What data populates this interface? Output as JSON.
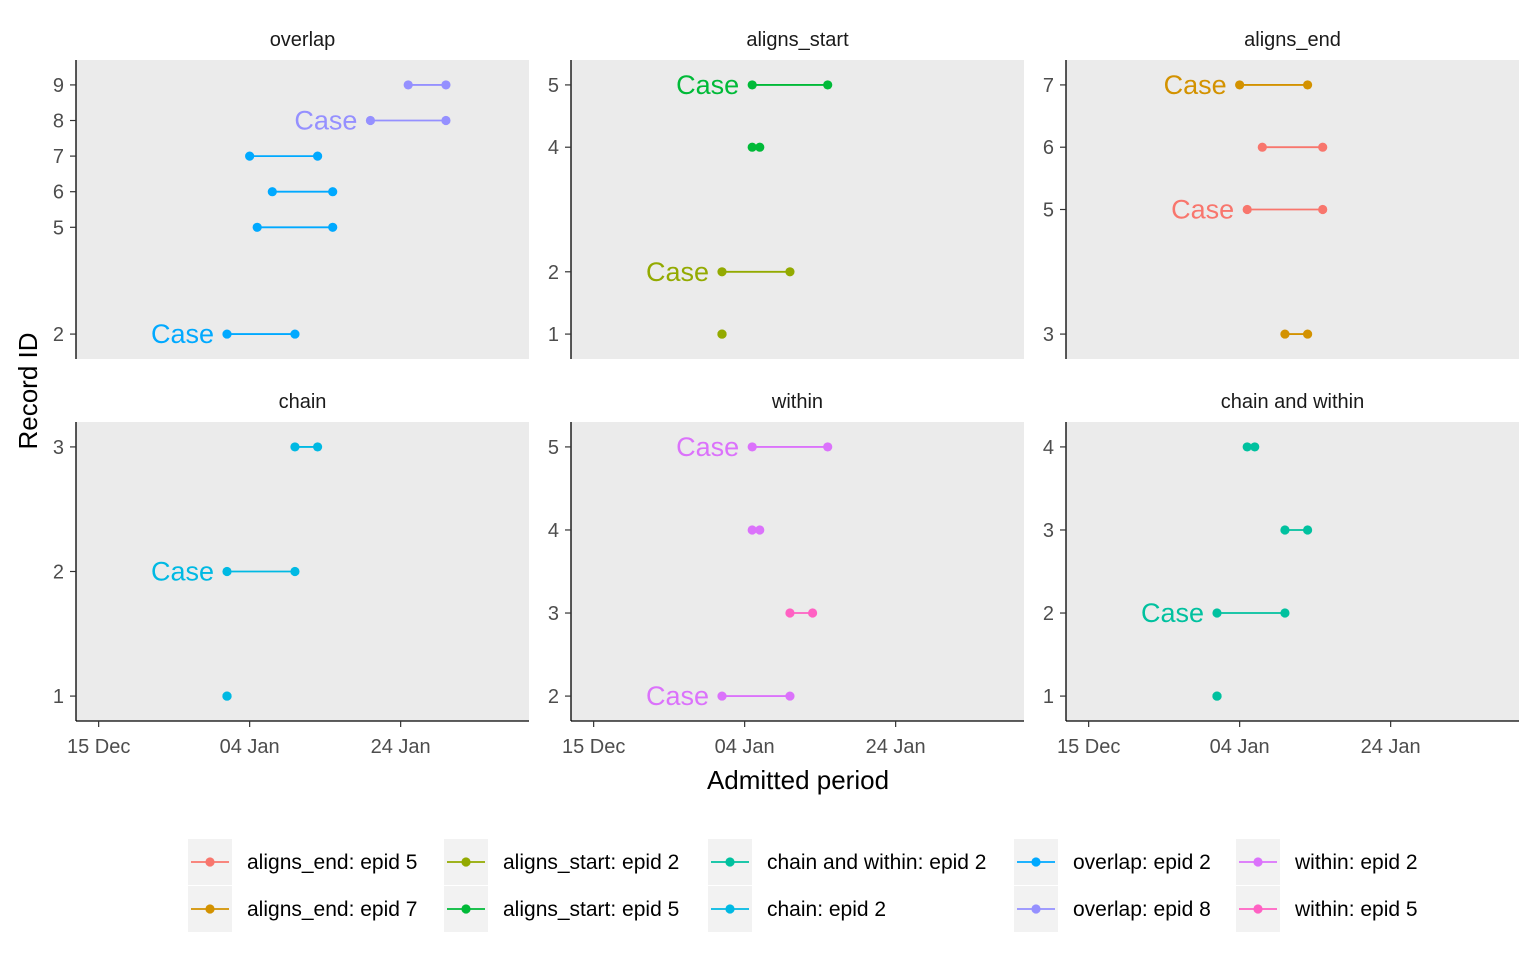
{
  "chart_data": {
    "type": "line",
    "title": "",
    "xlabel": "Admitted period",
    "ylabel": "Record ID",
    "x_ticks": [
      "15 Dec",
      "04 Jan",
      "24 Jan"
    ],
    "x_tick_dates": [
      "2019-12-15",
      "2020-01-04",
      "2020-01-24"
    ],
    "xlim": [
      "2019-12-12",
      "2020-02-10"
    ],
    "grid": false,
    "legend_position": "bottom",
    "case_label": "Case",
    "colors": {
      "aligns_end: epid 5": "#F8766D",
      "aligns_end: epid 7": "#D39200",
      "aligns_start: epid 2": "#93AA00",
      "aligns_start: epid 5": "#00BA38",
      "chain and within: epid 2": "#00C19F",
      "chain: epid 2": "#00B9E3",
      "overlap: epid 2": "#00A9FF",
      "overlap: epid 8": "#9590FF",
      "within: epid 2": "#DB72FB",
      "within: epid 5": "#FF61C3"
    },
    "legend": [
      "aligns_end: epid 5",
      "aligns_end: epid 7",
      "aligns_start: epid 2",
      "aligns_start: epid 5",
      "chain and within: epid 2",
      "chain: epid 2",
      "overlap: epid 2",
      "overlap: epid 8",
      "within: epid 2",
      "within: epid 5"
    ],
    "panels": [
      {
        "title": "overlap",
        "y_ticks": [
          "2",
          "5",
          "6",
          "7",
          "8",
          "9"
        ],
        "records": [
          {
            "id": "2",
            "start": "2020-01-01",
            "end": "2020-01-10",
            "series": "overlap: epid 2",
            "case": true
          },
          {
            "id": "5",
            "start": "2020-01-05",
            "end": "2020-01-15",
            "series": "overlap: epid 2",
            "case": false
          },
          {
            "id": "6",
            "start": "2020-01-07",
            "end": "2020-01-15",
            "series": "overlap: epid 2",
            "case": false
          },
          {
            "id": "7",
            "start": "2020-01-04",
            "end": "2020-01-13",
            "series": "overlap: epid 2",
            "case": false
          },
          {
            "id": "8",
            "start": "2020-01-20",
            "end": "2020-01-30",
            "series": "overlap: epid 8",
            "case": true
          },
          {
            "id": "9",
            "start": "2020-01-25",
            "end": "2020-01-30",
            "series": "overlap: epid 8",
            "case": false
          }
        ]
      },
      {
        "title": "aligns_start",
        "y_ticks": [
          "1",
          "2",
          "4",
          "5"
        ],
        "records": [
          {
            "id": "1",
            "start": "2020-01-01",
            "end": "2020-01-01",
            "series": "aligns_start: epid 2",
            "case": false
          },
          {
            "id": "2",
            "start": "2020-01-01",
            "end": "2020-01-10",
            "series": "aligns_start: epid 2",
            "case": true
          },
          {
            "id": "4",
            "start": "2020-01-05",
            "end": "2020-01-06",
            "series": "aligns_start: epid 5",
            "case": false
          },
          {
            "id": "5",
            "start": "2020-01-05",
            "end": "2020-01-15",
            "series": "aligns_start: epid 5",
            "case": true
          }
        ]
      },
      {
        "title": "aligns_end",
        "y_ticks": [
          "3",
          "5",
          "6",
          "7"
        ],
        "records": [
          {
            "id": "3",
            "start": "2020-01-10",
            "end": "2020-01-13",
            "series": "aligns_end: epid 7",
            "case": false
          },
          {
            "id": "5",
            "start": "2020-01-05",
            "end": "2020-01-15",
            "series": "aligns_end: epid 5",
            "case": true
          },
          {
            "id": "6",
            "start": "2020-01-07",
            "end": "2020-01-15",
            "series": "aligns_end: epid 5",
            "case": false
          },
          {
            "id": "7",
            "start": "2020-01-04",
            "end": "2020-01-13",
            "series": "aligns_end: epid 7",
            "case": true
          }
        ]
      },
      {
        "title": "chain",
        "y_ticks": [
          "1",
          "2",
          "3"
        ],
        "records": [
          {
            "id": "1",
            "start": "2020-01-01",
            "end": "2020-01-01",
            "series": "chain: epid 2",
            "case": false
          },
          {
            "id": "2",
            "start": "2020-01-01",
            "end": "2020-01-10",
            "series": "chain: epid 2",
            "case": true
          },
          {
            "id": "3",
            "start": "2020-01-10",
            "end": "2020-01-13",
            "series": "chain: epid 2",
            "case": false
          }
        ]
      },
      {
        "title": "within",
        "y_ticks": [
          "2",
          "3",
          "4",
          "5"
        ],
        "records": [
          {
            "id": "2",
            "start": "2020-01-01",
            "end": "2020-01-10",
            "series": "within: epid 2",
            "case": true
          },
          {
            "id": "3",
            "start": "2020-01-10",
            "end": "2020-01-13",
            "series": "within: epid 5",
            "case": false
          },
          {
            "id": "4",
            "start": "2020-01-05",
            "end": "2020-01-06",
            "series": "within: epid 2",
            "case": false
          },
          {
            "id": "5",
            "start": "2020-01-05",
            "end": "2020-01-15",
            "series": "within: epid 2",
            "case": true
          }
        ]
      },
      {
        "title": "chain and within",
        "y_ticks": [
          "1",
          "2",
          "3",
          "4"
        ],
        "records": [
          {
            "id": "1",
            "start": "2020-01-01",
            "end": "2020-01-01",
            "series": "chain and within: epid 2",
            "case": false
          },
          {
            "id": "2",
            "start": "2020-01-01",
            "end": "2020-01-10",
            "series": "chain and within: epid 2",
            "case": true
          },
          {
            "id": "3",
            "start": "2020-01-10",
            "end": "2020-01-13",
            "series": "chain and within: epid 2",
            "case": false
          },
          {
            "id": "4",
            "start": "2020-01-05",
            "end": "2020-01-06",
            "series": "chain and within: epid 2",
            "case": false
          }
        ]
      }
    ]
  }
}
